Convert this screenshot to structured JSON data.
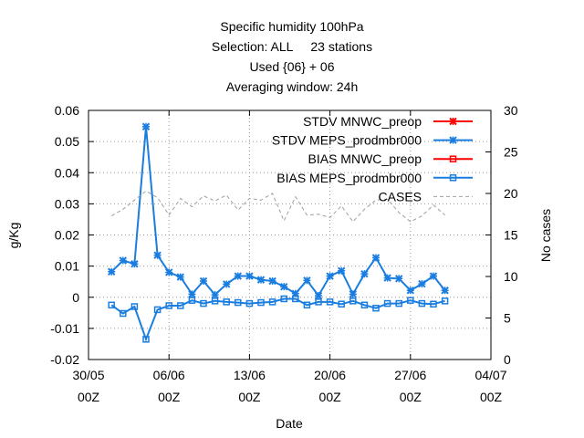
{
  "chart_data": {
    "type": "line",
    "title": [
      "Specific humidity 100hPa",
      "Selection: ALL     23 stations",
      "Used {06} + 06",
      "Averaging window: 24h"
    ],
    "xlabel": "Date",
    "ylabel": "g/Kg",
    "y2label": "No cases",
    "ylim": [
      -0.02,
      0.06
    ],
    "y2lim": [
      0,
      30
    ],
    "xlim_days": [
      0,
      35
    ],
    "xticks": [
      {
        "day": 0,
        "label1": "30/05",
        "label2": "00Z"
      },
      {
        "day": 7,
        "label1": "06/06",
        "label2": "00Z"
      },
      {
        "day": 14,
        "label1": "13/06",
        "label2": "00Z"
      },
      {
        "day": 21,
        "label1": "20/06",
        "label2": "00Z"
      },
      {
        "day": 28,
        "label1": "27/06",
        "label2": "00Z"
      },
      {
        "day": 35,
        "label1": "04/07",
        "label2": "00Z"
      }
    ],
    "yticks": [
      "-0.02",
      "-0.01",
      "0",
      "0.01",
      "0.02",
      "0.03",
      "0.04",
      "0.05",
      "0.06"
    ],
    "y2ticks": [
      "0",
      "5",
      "10",
      "15",
      "20",
      "25",
      "30"
    ],
    "grid": true,
    "legend_position": "top-right",
    "colors": {
      "red": "#ff0000",
      "blue": "#1a7de0",
      "gray": "#a0a0a0"
    },
    "series": [
      {
        "name": "STDV MNWC_preop",
        "color": "#ff0000",
        "marker": "x",
        "axis": "left",
        "x": [],
        "y": []
      },
      {
        "name": "STDV MEPS_prodmbr000",
        "color": "#1a7de0",
        "marker": "x",
        "axis": "left",
        "x": [
          2,
          3,
          4,
          5,
          6,
          7,
          8,
          9,
          10,
          11,
          12,
          13,
          14,
          15,
          16,
          17,
          18,
          19,
          20,
          21,
          22,
          23,
          24,
          25,
          26,
          27,
          28,
          29,
          30,
          31
        ],
        "y": [
          0.0082,
          0.0118,
          0.0107,
          0.0548,
          0.0135,
          0.008,
          0.0065,
          0.001,
          0.0052,
          0.0008,
          0.0042,
          0.0068,
          0.0068,
          0.0056,
          0.0052,
          0.0034,
          0.0012,
          0.0054,
          0.0005,
          0.0068,
          0.0085,
          0.001,
          0.0075,
          0.0127,
          0.0062,
          0.006,
          0.0022,
          0.0043,
          0.0068,
          0.0022
        ]
      },
      {
        "name": "BIAS MNWC_preop",
        "color": "#ff0000",
        "marker": "square",
        "axis": "left",
        "x": [],
        "y": []
      },
      {
        "name": "BIAS MEPS_prodmbr000",
        "color": "#1a7de0",
        "marker": "square",
        "axis": "left",
        "x": [
          2,
          3,
          4,
          5,
          6,
          7,
          8,
          9,
          10,
          11,
          12,
          13,
          14,
          15,
          16,
          17,
          18,
          19,
          20,
          21,
          22,
          23,
          24,
          25,
          26,
          27,
          28,
          29,
          30,
          31
        ],
        "y": [
          -0.0025,
          -0.0052,
          -0.003,
          -0.0135,
          -0.004,
          -0.0027,
          -0.0027,
          -0.001,
          -0.002,
          -0.0012,
          -0.0015,
          -0.0017,
          -0.002,
          -0.0017,
          -0.0015,
          -0.0005,
          -0.0005,
          -0.0025,
          -0.0015,
          -0.0015,
          -0.0022,
          -0.0012,
          -0.0025,
          -0.0035,
          -0.002,
          -0.002,
          -0.001,
          -0.002,
          -0.0022,
          -0.0012
        ]
      },
      {
        "name": "CASES",
        "color": "#a0a0a0",
        "marker": "none",
        "dash": true,
        "axis": "right",
        "x": [
          2,
          3,
          4,
          5,
          6,
          7,
          8,
          9,
          10,
          11,
          12,
          13,
          14,
          15,
          16,
          17,
          18,
          19,
          20,
          21,
          22,
          23,
          24,
          25,
          26,
          27,
          28,
          29,
          30,
          31
        ],
        "y": [
          17.3,
          18.1,
          19.2,
          20.3,
          19.5,
          17.4,
          19.4,
          18.4,
          19.7,
          19.1,
          19.8,
          18.0,
          19.4,
          19.2,
          20.0,
          16.7,
          19.6,
          17.4,
          17.5,
          17.1,
          18.5,
          16.6,
          18.1,
          19.2,
          19.3,
          17.7,
          16.6,
          17.3,
          18.6,
          17.4
        ]
      }
    ]
  }
}
